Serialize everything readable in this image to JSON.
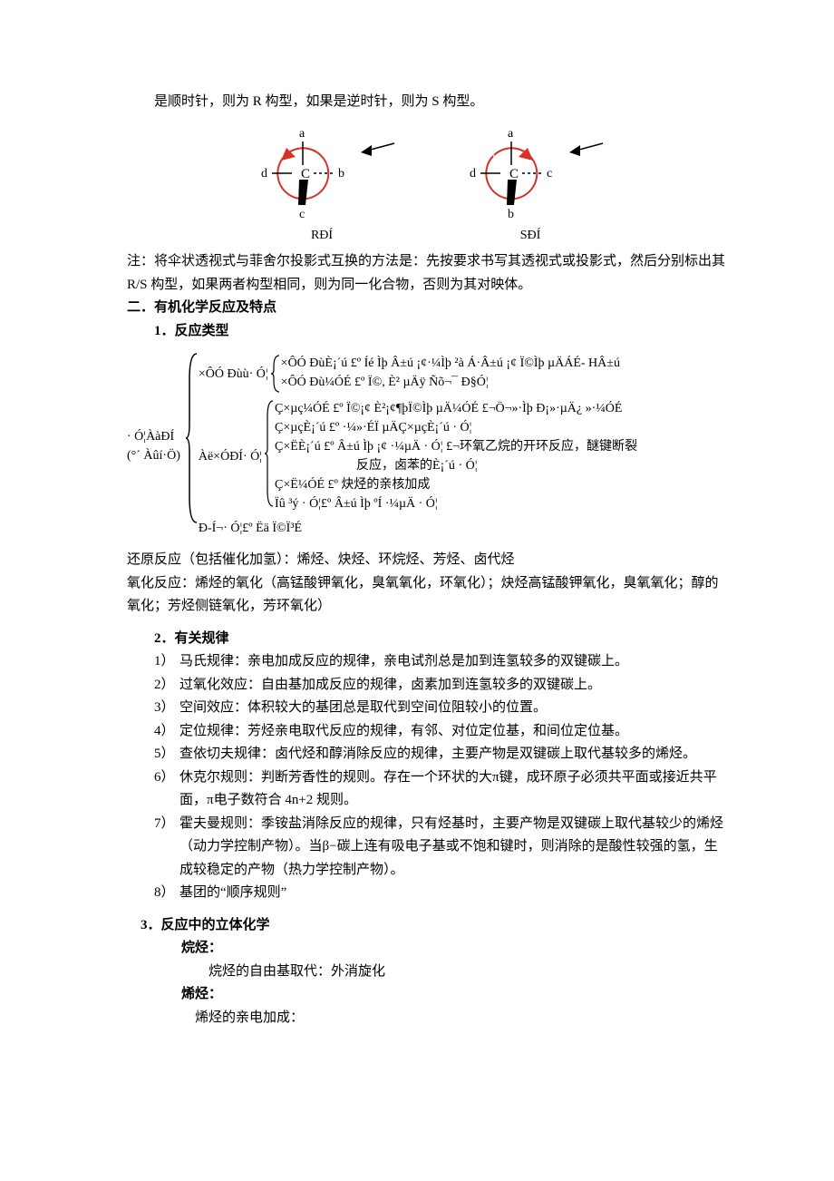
{
  "top_line": "是顺时针，则为 R 构型，如果是逆时针，则为 S 构型。",
  "figures": {
    "left_label": "RĐÍ",
    "right_label": "SĐÍ",
    "colors": {
      "arc": "#d6302a",
      "arrow": "#000000",
      "line": "#000000"
    },
    "left": {
      "letters": [
        "a",
        "b",
        "c",
        "d"
      ],
      "center": "C",
      "rotation": "clockwise"
    },
    "right": {
      "letters": [
        "a",
        "c",
        "b",
        "d"
      ],
      "center": "C",
      "rotation": "counterclockwise"
    }
  },
  "note1": "注：将伞状透视式与菲舍尔投影式互换的方法是：先按要求书写其透视式或投影式，然后分别标出其 R/S 构型，如果两者构型相同，则为同一化合物，否则为其对映体。",
  "sec2_title": "二．有机化学反应及特点",
  "sec2_1": "1．反应类型",
  "bracket": {
    "root_label_1": "· Ó¦ÀàÐÍ",
    "root_label_2": "(°´ Àûí·Ö)",
    "branch1_label": "×ÔÓ Đùù· Ó¦",
    "branch1_a": "×ÔÓ ĐùÈ¡´ú £º Íé Ìþ Â±ú ¡¢·¼Ìþ ²à Á·Â±ú ¡¢ Ï©Ìþ µÄÁÉ- HÂ±ú",
    "branch1_b": "×ÔÓ Đù¼ÓÉ £º Ï©, È² µÄÿ Ñõ¬¯ Đ§Ó¦",
    "branch2_label": "Àë×ÓÐÍ· Ó¦",
    "branch2_a": "Ç×µç¼ÓÉ £º Ï©¡¢ È²¡¢¶þÏ©Ìþ µÄ¼ÓÉ £¬Ö¬»·Ìþ Đ¡»·µÄ¿ »·¼ÓÉ",
    "branch2_b": "Ç×µçÈ¡´ú £º ·¼»·ÉÏ µÄÇ×µçÈ¡´ú · Ó¦",
    "branch2_c": "Ç×ËÈ¡´ú £º Â±ú Ìþ ¡¢ ·¼µÄ · Ó¦ £¬环氧乙烷的开环反应，醚键断裂",
    "branch2_c2": "反应，卤苯的È¡´ú · Ó¦",
    "branch2_d": "Ç×Ë¼ÓÉ £º 炔烃的亲核加成",
    "branch2_e": "Ïû ³ý · Ó¦£º Â±ú Ìþ ºÍ ·¼µÄ · Ó¦",
    "branch3": "Đ-Í¬· Ó¦£º Ëä Ï©Ï³É"
  },
  "after_bracket_1": "还原反应（包括催化加氢）：烯烃、炔烃、环烷烃、芳烃、卤代烃",
  "after_bracket_2": "氧化反应：烯烃的氧化（高锰酸钾氧化，臭氧氧化，环氧化）；炔烃高锰酸钾氧化，臭氧氧化；醇的氧化；芳烃侧链氧化，芳环氧化）",
  "sec2_2": "2．有关规律",
  "rules": [
    {
      "n": "1）",
      "t": "马氏规律：亲电加成反应的规律，亲电试剂总是加到连氢较多的双键碳上。"
    },
    {
      "n": "2）",
      "t": "过氧化效应：自由基加成反应的规律，卤素加到连氢较多的双键碳上。"
    },
    {
      "n": "3）",
      "t": "空间效应：体积较大的基团总是取代到空间位阻较小的位置。"
    },
    {
      "n": "4）",
      "t": "定位规律：芳烃亲电取代反应的规律，有邻、对位定位基，和间位定位基。"
    },
    {
      "n": "5）",
      "t": "查依切夫规律：卤代烃和醇消除反应的规律，主要产物是双键碳上取代基较多的烯烃。"
    },
    {
      "n": "6）",
      "t": "休克尔规则：判断芳香性的规则。存在一个环状的大π键，成环原子必须共平面或接近共平面，π电子数符合 4n+2 规则。"
    },
    {
      "n": "7）",
      "t": "霍夫曼规则：季铵盐消除反应的规律，只有烃基时，主要产物是双键碳上取代基较少的烯烃（动力学控制产物）。当β−碳上连有吸电子基或不饱和键时，则消除的是酸性较强的氢，生成较稳定的产物（热力学控制产物）。"
    },
    {
      "n": "8）",
      "t": "基团的“顺序规则”"
    }
  ],
  "sec2_3": "3．反应中的立体化学",
  "stereo_1": "烷烃：",
  "stereo_1_sub": "烷烃的自由基取代：外消旋化",
  "stereo_2": "烯烃：",
  "stereo_2_sub": "烯烃的亲电加成："
}
